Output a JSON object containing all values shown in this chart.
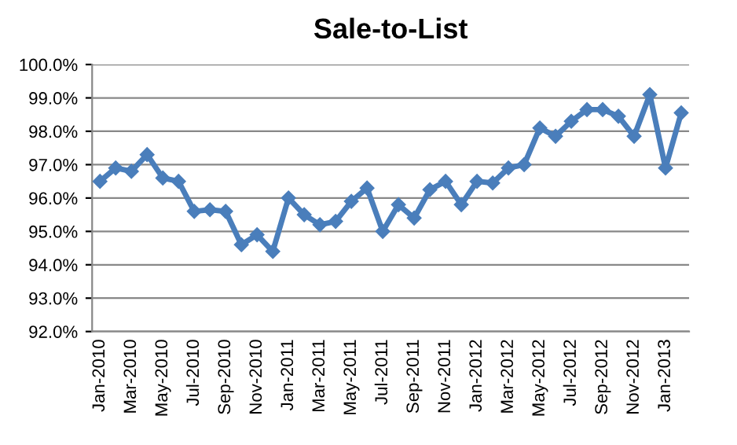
{
  "chart_data": {
    "type": "line",
    "title": "Sale-to-List",
    "categories": [
      "Jan-2010",
      null,
      "Mar-2010",
      null,
      "May-2010",
      null,
      "Jul-2010",
      null,
      "Sep-2010",
      null,
      "Nov-2010",
      null,
      "Jan-2011",
      null,
      "Mar-2011",
      null,
      "May-2011",
      null,
      "Jul-2011",
      null,
      "Sep-2011",
      null,
      "Nov-2011",
      null,
      "Jan-2012",
      null,
      "Mar-2012",
      null,
      "May-2012",
      null,
      "Jul-2012",
      null,
      "Sep-2012",
      null,
      "Nov-2012",
      null,
      "Jan-2013",
      null
    ],
    "series": [
      {
        "color": "#4a7ebb",
        "values": [
          96.5,
          96.9,
          96.8,
          97.3,
          96.6,
          96.5,
          95.6,
          95.65,
          95.6,
          94.6,
          94.9,
          94.4,
          96.0,
          95.5,
          95.2,
          95.3,
          95.9,
          96.3,
          95.0,
          95.8,
          95.4,
          96.25,
          96.5,
          95.8,
          96.5,
          96.45,
          96.9,
          97.0,
          98.1,
          97.85,
          98.3,
          98.65,
          98.65,
          98.45,
          97.85,
          99.1,
          96.9,
          98.55
        ]
      }
    ],
    "ylim": [
      92,
      100
    ],
    "yticks": [
      {
        "value": 92,
        "label": "92.0%"
      },
      {
        "value": 93,
        "label": "93.0%"
      },
      {
        "value": 94,
        "label": "94.0%"
      },
      {
        "value": 95,
        "label": "95.0%"
      },
      {
        "value": 96,
        "label": "96.0%"
      },
      {
        "value": 97,
        "label": "97.0%"
      },
      {
        "value": 98,
        "label": "98.0%"
      },
      {
        "value": 99,
        "label": "99.0%"
      },
      {
        "value": 100,
        "label": "100.0%"
      }
    ],
    "grid": "y",
    "marker": "diamond",
    "line_style": "solid",
    "legend": false
  }
}
